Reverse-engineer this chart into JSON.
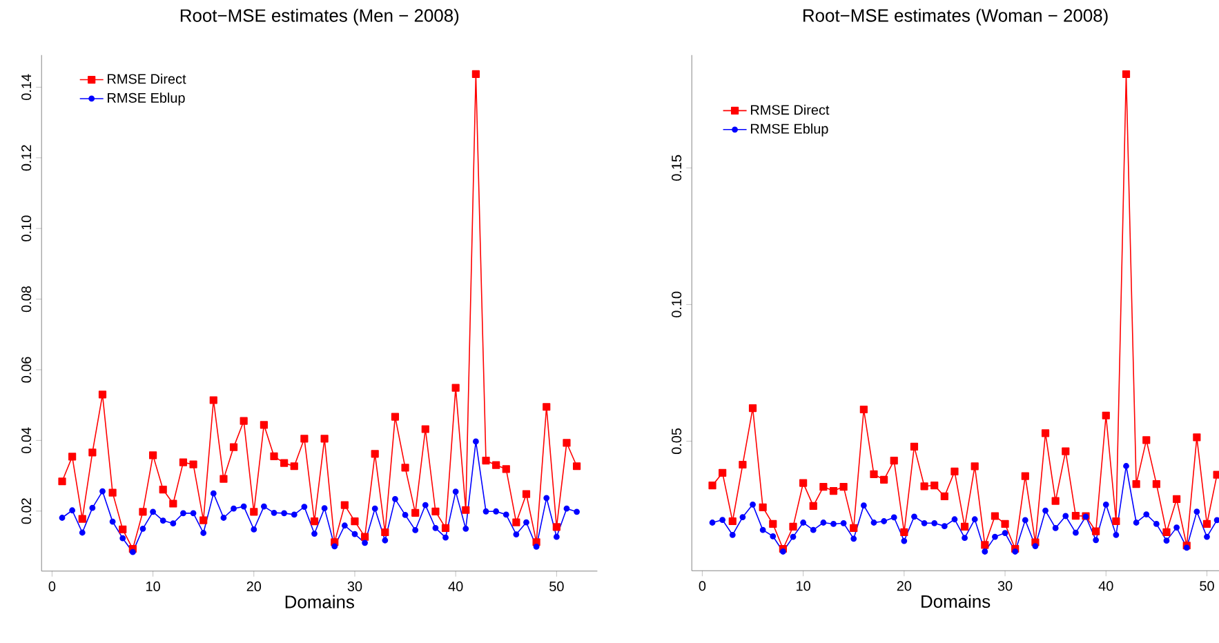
{
  "chart_data": [
    {
      "type": "line",
      "title": "Root−MSE estimates (Men − 2008)",
      "xlabel": "Domains",
      "x": [
        1,
        2,
        3,
        4,
        5,
        6,
        7,
        8,
        9,
        10,
        11,
        12,
        13,
        14,
        15,
        16,
        17,
        18,
        19,
        20,
        21,
        22,
        23,
        24,
        25,
        26,
        27,
        28,
        29,
        30,
        31,
        32,
        33,
        34,
        35,
        36,
        37,
        38,
        39,
        40,
        41,
        42,
        43,
        44,
        45,
        46,
        47,
        48,
        49,
        50,
        51,
        52
      ],
      "series": [
        {
          "name": "RMSE Direct",
          "color": "#ff0000",
          "marker": "square",
          "values": [
            0.0284,
            0.0354,
            0.0178,
            0.0366,
            0.053,
            0.0252,
            0.0148,
            0.0093,
            0.0198,
            0.0358,
            0.0261,
            0.0221,
            0.0338,
            0.0332,
            0.0174,
            0.0514,
            0.0291,
            0.0381,
            0.0455,
            0.0198,
            0.0444,
            0.0355,
            0.0336,
            0.0327,
            0.0405,
            0.0171,
            0.0405,
            0.0112,
            0.0217,
            0.0171,
            0.0127,
            0.0362,
            0.014,
            0.0467,
            0.0323,
            0.0195,
            0.0432,
            0.0199,
            0.0152,
            0.0549,
            0.0203,
            0.1437,
            0.0343,
            0.033,
            0.0319,
            0.0168,
            0.0248,
            0.0112,
            0.0495,
            0.0155,
            0.0393,
            0.0327
          ]
        },
        {
          "name": "RMSE Eblup",
          "color": "#0000ff",
          "marker": "circle",
          "values": [
            0.0181,
            0.0202,
            0.0139,
            0.0209,
            0.0256,
            0.017,
            0.0123,
            0.0084,
            0.015,
            0.0198,
            0.0173,
            0.0165,
            0.0194,
            0.0194,
            0.0138,
            0.025,
            0.0181,
            0.0207,
            0.0213,
            0.0148,
            0.0213,
            0.0195,
            0.0194,
            0.019,
            0.0212,
            0.0136,
            0.0208,
            0.01,
            0.0159,
            0.0135,
            0.011,
            0.0207,
            0.0117,
            0.0234,
            0.0189,
            0.0146,
            0.0217,
            0.0152,
            0.0125,
            0.0255,
            0.015,
            0.0397,
            0.0199,
            0.0199,
            0.019,
            0.0134,
            0.0168,
            0.0099,
            0.0237,
            0.0127,
            0.0207,
            0.0198
          ]
        }
      ],
      "xlim": [
        -1.04,
        54.04
      ],
      "ylim": [
        0.003,
        0.1491
      ],
      "xticks": [
        0,
        10,
        20,
        30,
        40,
        50
      ],
      "yticks": [
        {
          "value": 0.02,
          "label": "0.02"
        },
        {
          "value": 0.04,
          "label": "0.04"
        },
        {
          "value": 0.06,
          "label": "0.06"
        },
        {
          "value": 0.08,
          "label": "0.08"
        },
        {
          "value": 0.1,
          "label": "0.10"
        },
        {
          "value": 0.12,
          "label": "0.12"
        },
        {
          "value": 0.14,
          "label": "0.14"
        }
      ],
      "legend": "top left",
      "grid": false
    },
    {
      "type": "line",
      "title": "Root−MSE estimates (Woman − 2008)",
      "xlabel": "Domains",
      "x": [
        1,
        2,
        3,
        4,
        5,
        6,
        7,
        8,
        9,
        10,
        11,
        12,
        13,
        14,
        15,
        16,
        17,
        18,
        19,
        20,
        21,
        22,
        23,
        24,
        25,
        26,
        27,
        28,
        29,
        30,
        31,
        32,
        33,
        34,
        35,
        36,
        37,
        38,
        39,
        40,
        41,
        42,
        43,
        44,
        45,
        46,
        47,
        48,
        49,
        50,
        51
      ],
      "series": [
        {
          "name": "RMSE Direct",
          "color": "#ff0000",
          "marker": "square",
          "values": [
            0.0338,
            0.0384,
            0.0207,
            0.0414,
            0.0621,
            0.0258,
            0.0197,
            0.0106,
            0.0187,
            0.0347,
            0.0263,
            0.0333,
            0.0318,
            0.0333,
            0.0182,
            0.0616,
            0.0379,
            0.0359,
            0.0429,
            0.0167,
            0.048,
            0.0335,
            0.0338,
            0.0298,
            0.0389,
            0.0187,
            0.0408,
            0.012,
            0.0226,
            0.0197,
            0.0106,
            0.0372,
            0.013,
            0.0529,
            0.0281,
            0.0463,
            0.0227,
            0.0226,
            0.017,
            0.0594,
            0.0207,
            0.1843,
            0.0343,
            0.0504,
            0.0343,
            0.0167,
            0.0288,
            0.0118,
            0.0514,
            0.0197,
            0.0377
          ]
        },
        {
          "name": "RMSE Eblup",
          "color": "#0000ff",
          "marker": "circle",
          "values": [
            0.0202,
            0.0212,
            0.0157,
            0.0222,
            0.0268,
            0.0175,
            0.0152,
            0.0096,
            0.015,
            0.0202,
            0.0175,
            0.0202,
            0.0197,
            0.02,
            0.0143,
            0.0265,
            0.0202,
            0.0207,
            0.0221,
            0.0135,
            0.0224,
            0.02,
            0.02,
            0.0189,
            0.0214,
            0.0146,
            0.0214,
            0.0096,
            0.015,
            0.0164,
            0.0096,
            0.0211,
            0.0116,
            0.0246,
            0.0182,
            0.0226,
            0.0165,
            0.0224,
            0.0138,
            0.0268,
            0.0157,
            0.0409,
            0.0202,
            0.0232,
            0.0197,
            0.0136,
            0.0184,
            0.011,
            0.0242,
            0.015,
            0.0211
          ]
        }
      ],
      "xlim": [
        -1.04,
        51.2
      ],
      "ylim": [
        0.0026,
        0.1913
      ],
      "xticks": [
        0,
        10,
        20,
        30,
        40,
        50
      ],
      "yticks": [
        {
          "value": 0.05,
          "label": "0.05"
        },
        {
          "value": 0.1,
          "label": "0.10"
        },
        {
          "value": 0.15,
          "label": "0.15"
        }
      ],
      "legend": "top left",
      "grid": false
    }
  ]
}
